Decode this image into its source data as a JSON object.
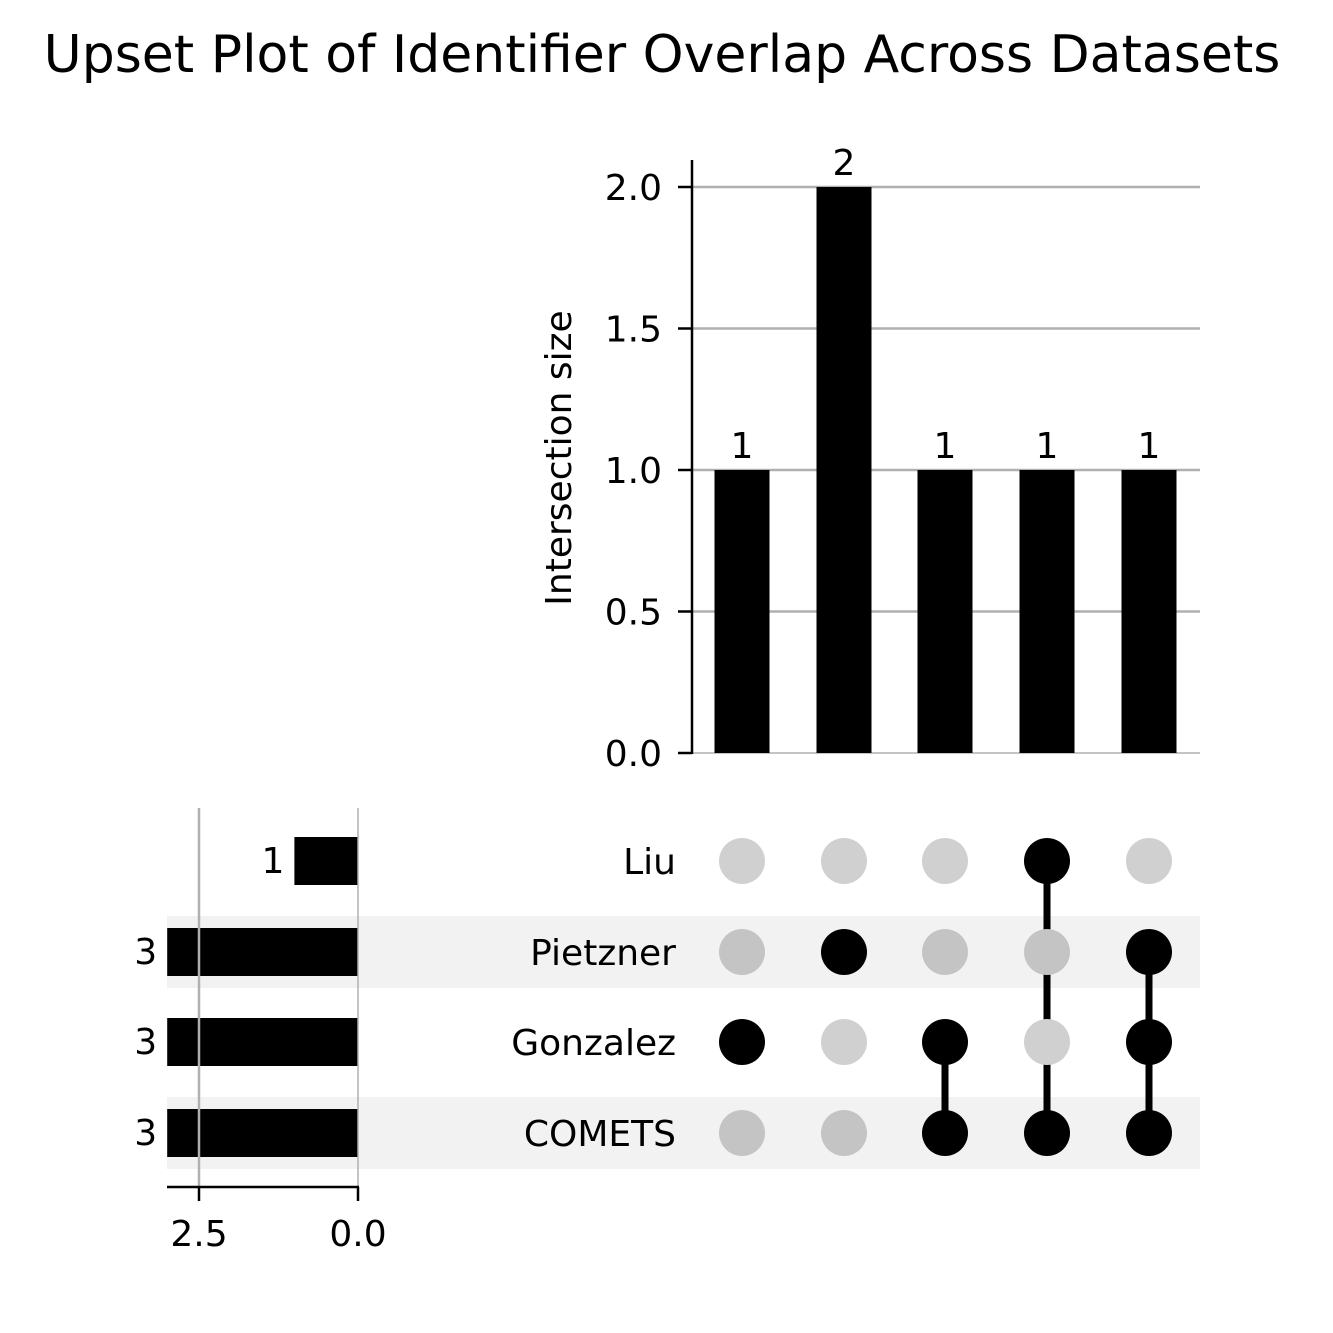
{
  "chart_data": {
    "type": "upset",
    "title": "Upset Plot of Identifier Overlap Across Datasets",
    "intersection_axis": {
      "label": "Intersection size",
      "ylim": [
        0,
        2.1
      ],
      "ticks": [
        0.0,
        0.5,
        1.0,
        1.5,
        2.0
      ],
      "tick_labels": [
        "0.0",
        "0.5",
        "1.0",
        "1.5",
        "2.0"
      ],
      "grid": true
    },
    "sets": [
      {
        "name": "Liu",
        "size": 1,
        "size_label": "1"
      },
      {
        "name": "Pietzner",
        "size": 3,
        "size_label": "3"
      },
      {
        "name": "Gonzalez",
        "size": 3,
        "size_label": "3"
      },
      {
        "name": "COMETS",
        "size": 3,
        "size_label": "3"
      }
    ],
    "set_size_axis": {
      "ticks": [
        2.5,
        0.0
      ],
      "tick_labels": [
        "2.5",
        "0.0"
      ],
      "reversed": true,
      "grid": true
    },
    "intersections": [
      {
        "members": [
          "Gonzalez"
        ],
        "value": 1,
        "label": "1"
      },
      {
        "members": [
          "Pietzner"
        ],
        "value": 2,
        "label": "2"
      },
      {
        "members": [
          "Gonzalez",
          "COMETS"
        ],
        "value": 1,
        "label": "1"
      },
      {
        "members": [
          "Liu",
          "COMETS"
        ],
        "value": 1,
        "label": "1"
      },
      {
        "members": [
          "Pietzner",
          "Gonzalez",
          "COMETS"
        ],
        "value": 1,
        "label": "1"
      }
    ],
    "colors": {
      "bar": "#000000",
      "dot_active": "#000000",
      "dot_inactive_light": "#d0d0d0",
      "dot_inactive_shaded": "#c4c4c4",
      "grid": "#b0b0b0",
      "row_shade": "#f2f2f2"
    }
  }
}
